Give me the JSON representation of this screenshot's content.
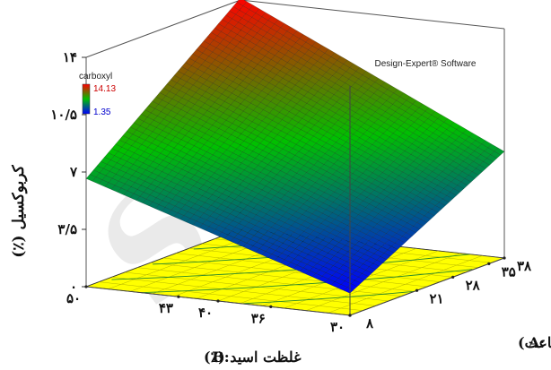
{
  "chart_data": {
    "type": "surface3d",
    "software_label": "Design-Expert® Software",
    "watermark_text": "SID",
    "legend": {
      "title": "carboxyl",
      "max_label": "14.13",
      "min_label": "1.35",
      "max": 14.13,
      "min": 1.35,
      "colors": [
        "#0000ff",
        "#00c000",
        "#ff0000"
      ]
    },
    "z_axis": {
      "label": "کربوکسیل (٪)",
      "ticks": [
        "۰",
        "۳/۵",
        "۷",
        "۱۰/۵",
        "۱۴"
      ],
      "values": [
        0,
        3.5,
        7,
        10.5,
        14
      ]
    },
    "a_axis": {
      "prefix": "A:",
      "label": "زمان (ساعت)",
      "ticks": [
        "۸",
        "۲۱",
        "۲۸",
        "۳۵",
        "۳۸"
      ],
      "values": [
        8,
        21,
        28,
        35,
        38
      ]
    },
    "b_axis": {
      "prefix": "B:",
      "label": "غلظت اسید (٪)",
      "ticks": [
        "۳۰",
        "۳۶",
        "۴۰",
        "۴۳",
        "۵۰"
      ],
      "values": [
        30,
        36,
        40,
        43,
        50
      ]
    },
    "surface_corners": {
      "A8_B50": 6.6,
      "A38_B50": 14.13,
      "A8_B30": 1.35,
      "A38_B30": 6.5
    },
    "floor_contour_color": "#ffff00",
    "surface_grid": 42
  }
}
